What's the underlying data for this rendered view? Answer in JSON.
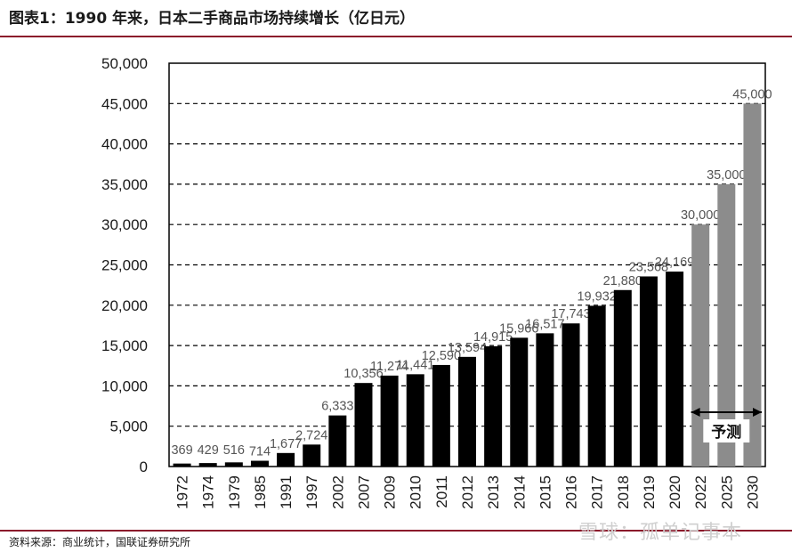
{
  "header": {
    "title": "图表1：1990 年来，日本二手商品市场持续增长（亿日元）"
  },
  "footer": {
    "source": "资料来源：商业统计，国联证券研究所",
    "watermark": "雪球：孤单记事本"
  },
  "chart_data": {
    "type": "bar",
    "categories": [
      "1972",
      "1974",
      "1979",
      "1985",
      "1991",
      "1997",
      "2002",
      "2007",
      "2009",
      "2010",
      "2011",
      "2012",
      "2013",
      "2014",
      "2015",
      "2016",
      "2017",
      "2018",
      "2019",
      "2020",
      "2022",
      "2025",
      "2030"
    ],
    "values": [
      369,
      429,
      516,
      714,
      1677,
      2724,
      6333,
      10356,
      11274,
      11441,
      12590,
      13594,
      14915,
      15966,
      16517,
      17743,
      19932,
      21880,
      23568,
      24169,
      30000,
      35000,
      45000
    ],
    "data_labels": [
      "369",
      "429",
      "516",
      "714",
      "1,677",
      "2,724",
      "6,333",
      "10,356",
      "11,274",
      "11,441",
      "12,590",
      "13,594",
      "14,915",
      "15,966",
      "16,517",
      "17,743",
      "19,932",
      "21,880",
      "23,568",
      "24,169",
      "30,000",
      "35,000",
      "45,000"
    ],
    "forecast": [
      false,
      false,
      false,
      false,
      false,
      false,
      false,
      false,
      false,
      false,
      false,
      false,
      false,
      false,
      false,
      false,
      false,
      false,
      false,
      false,
      true,
      true,
      true
    ],
    "forecast_label": "予测",
    "yticks": [
      "0",
      "5,000",
      "10,000",
      "15,000",
      "20,000",
      "25,000",
      "30,000",
      "35,000",
      "40,000",
      "45,000",
      "50,000"
    ],
    "ylim": [
      0,
      50000
    ],
    "grid": true,
    "colors": {
      "actual": "#000000",
      "forecast": "#8c8c8c",
      "grid": "#000000"
    }
  }
}
